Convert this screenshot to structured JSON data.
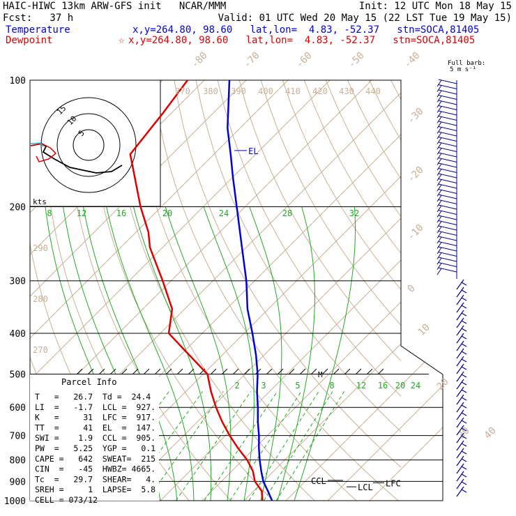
{
  "header": {
    "line1_left": "HAIC-HIWC 13km ARW-GFS init   NCAR/MMM",
    "line1_right": "Init: 12 UTC Mon 18 May 15",
    "line2_left": "Fcst:   37 h",
    "line2_right": "Valid: 01 UTC Wed 20 May 15 (22 LST Tue 19 May 15)",
    "temp_label": "Temperature",
    "temp_info": "x,y=264.80, 98.60   lat,lon=  4.83, -52.37   stn=SOCA,81405",
    "dew_label": "Dewpoint",
    "dew_marker": "☆",
    "dew_info": "x,y=264.80, 98.60   lat,lon=  4.83, -52.37   stn=SOCA,81405",
    "barb_legend": "Full barb:",
    "barb_units": "5 m s⁻¹"
  },
  "colors": {
    "temperature": "#0000dd",
    "dewpoint": "#dd0000",
    "isotherm": "#c8b096",
    "dry_adiabat": "#c8b096",
    "moist_adiabat": "#22aa22",
    "mixing_ratio": "#22aa22",
    "barb": "#000088",
    "hodograph": "#000000"
  },
  "chart_data": {
    "type": "skew-t",
    "pressure_levels": [
      100,
      200,
      300,
      400,
      500,
      600,
      700,
      800,
      900,
      1000
    ],
    "isotherm_labels": [
      "-80",
      "-70",
      "-60",
      "-50",
      "-40",
      "-30",
      "-20",
      "-10",
      "0",
      "10",
      "20",
      "30",
      "40"
    ],
    "theta_labels": [
      "370",
      "380",
      "390",
      "400",
      "410",
      "420",
      "430",
      "440",
      "290",
      "280",
      "270"
    ],
    "mixing_ratio_labels_upper": [
      "8",
      "12",
      "16",
      "20",
      "24",
      "28",
      "32"
    ],
    "mixing_ratio_labels_lower": [
      "2",
      "3",
      "5",
      "8",
      "12",
      "16",
      "20",
      "24"
    ],
    "temperature_series": {
      "name": "Temperature",
      "points": [
        [
          1000,
          26.7
        ],
        [
          950,
          23.5
        ],
        [
          900,
          20
        ],
        [
          850,
          17
        ],
        [
          800,
          14
        ],
        [
          750,
          11
        ],
        [
          700,
          8
        ],
        [
          650,
          4.5
        ],
        [
          600,
          1
        ],
        [
          550,
          -3
        ],
        [
          500,
          -7
        ],
        [
          450,
          -12
        ],
        [
          400,
          -18
        ],
        [
          350,
          -25
        ],
        [
          300,
          -32
        ],
        [
          250,
          -41
        ],
        [
          200,
          -52
        ],
        [
          170,
          -60
        ],
        [
          150,
          -66
        ],
        [
          130,
          -73
        ],
        [
          110,
          -80
        ],
        [
          100,
          -84
        ]
      ]
    },
    "dewpoint_series": {
      "name": "Dewpoint",
      "points": [
        [
          1000,
          24.4
        ],
        [
          950,
          22
        ],
        [
          900,
          18
        ],
        [
          850,
          15
        ],
        [
          800,
          11
        ],
        [
          750,
          6
        ],
        [
          700,
          1
        ],
        [
          650,
          -4
        ],
        [
          600,
          -9
        ],
        [
          550,
          -14
        ],
        [
          500,
          -19
        ],
        [
          450,
          -28
        ],
        [
          400,
          -38
        ],
        [
          350,
          -43
        ],
        [
          300,
          -52
        ],
        [
          250,
          -63
        ],
        [
          230,
          -67
        ],
        [
          200,
          -75
        ],
        [
          150,
          -90
        ],
        [
          120,
          -92
        ],
        [
          100,
          -94
        ]
      ]
    },
    "level_labels": [
      "EL",
      "CCL",
      "LCL",
      "LFC"
    ],
    "parcel_marker": "M",
    "parcel_info": {
      "title": "Parcel Info",
      "rows": [
        "T   =   26.7  Td =  24.4",
        "LI  =   -1.7  LCL =  927.",
        "K   =     31  LFC =  917.",
        "TT  =     41  EL  =  147.",
        "SWI =    1.9  CCL =  905.",
        "PW  =   5.25  YGP =   0.1",
        "CAPE =   642  SWEAT=  215",
        "CIN  =   -45  HWBZ= 4665.",
        "Tc  =   29.7  SHEAR=   4.",
        "SREH =     1  LAPSE=  5.8",
        "CELL = 073/12"
      ]
    },
    "hodograph": {
      "ring_labels": [
        "5",
        "10",
        "15"
      ],
      "units": "kts"
    }
  }
}
